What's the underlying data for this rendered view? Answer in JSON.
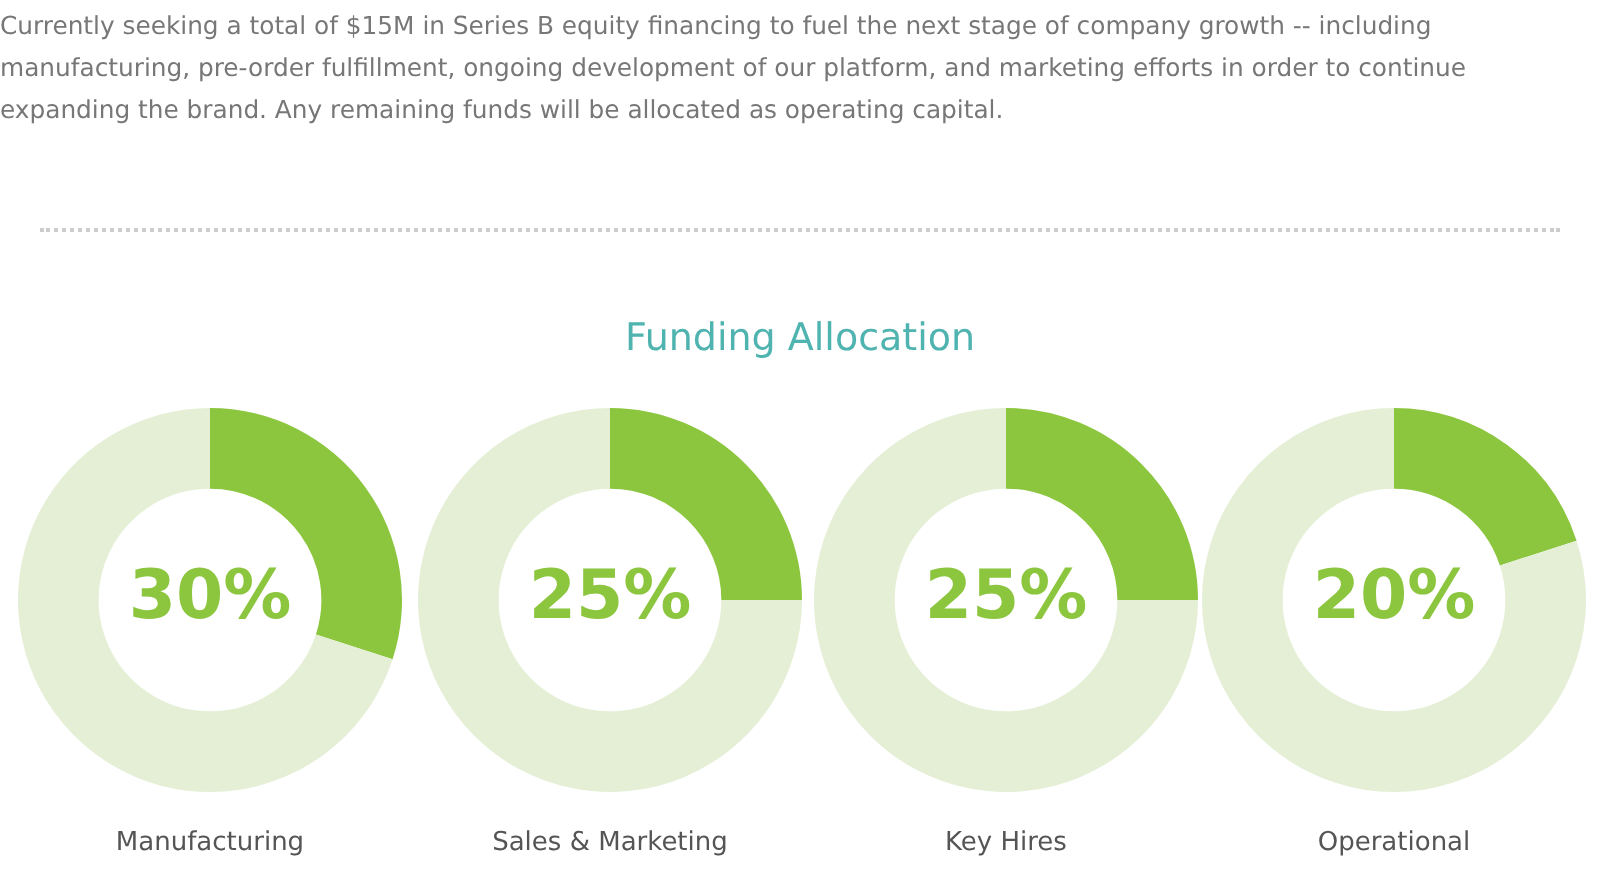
{
  "chart_data": [
    {
      "type": "other",
      "title": "Funding Allocation",
      "annotations": [
        "Currently seeking a total of $15M in Series B equity financing to fuel the next stage of company growth -- including manufacturing, pre-order fulfillment, ongoing development of our platform, and marketing efforts in order to continue expanding the brand. Any remaining funds will be allocated as operating capital."
      ]
    },
    {
      "type": "donut",
      "title": "Manufacturing",
      "categories": [
        null,
        null
      ],
      "values": [
        30,
        70
      ],
      "colors": [
        "#8cc63f",
        "#e4efd6"
      ],
      "value_labels": [
        "30%",
        null
      ]
    },
    {
      "type": "donut",
      "title": "Sales & Marketing",
      "categories": [
        null,
        null
      ],
      "values": [
        25,
        75
      ],
      "colors": [
        "#8cc63f",
        "#e4efd6"
      ],
      "value_labels": [
        "25%",
        null
      ]
    },
    {
      "type": "donut",
      "title": "Key Hires",
      "categories": [
        null,
        null
      ],
      "values": [
        25,
        75
      ],
      "colors": [
        "#8cc63f",
        "#e4efd6"
      ],
      "value_labels": [
        "25%",
        null
      ]
    },
    {
      "type": "donut",
      "title": "Operational",
      "categories": [
        null,
        null
      ],
      "values": [
        20,
        80
      ],
      "colors": [
        "#8cc63f",
        "#e4efd6"
      ],
      "value_labels": [
        "20%",
        null
      ]
    }
  ]
}
